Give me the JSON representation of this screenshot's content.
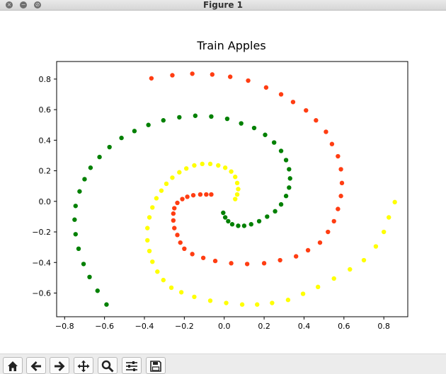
{
  "window": {
    "title": "Figure 1",
    "buttons": [
      {
        "name": "close",
        "glyph": "×"
      },
      {
        "name": "minimize",
        "glyph": "−"
      },
      {
        "name": "zoom",
        "glyph": "⊘"
      }
    ]
  },
  "chart_data": {
    "type": "scatter",
    "title": "Train Apples",
    "xlabel": "",
    "ylabel": "",
    "xlim": [
      -0.84,
      0.92
    ],
    "ylim": [
      -0.755,
      0.915
    ],
    "xticks": [
      -0.8,
      -0.6,
      -0.4,
      -0.2,
      0.0,
      0.2,
      0.4,
      0.6,
      0.8
    ],
    "xtick_labels": [
      "−0.8",
      "−0.6",
      "−0.4",
      "−0.2",
      "0.0",
      "0.2",
      "0.4",
      "0.6",
      "0.8"
    ],
    "yticks": [
      -0.6,
      -0.4,
      -0.2,
      0.0,
      0.2,
      0.4,
      0.6,
      0.8
    ],
    "ytick_labels": [
      "−0.6",
      "−0.4",
      "−0.2",
      "0.0",
      "0.2",
      "0.4",
      "0.6",
      "0.8"
    ],
    "grid": false,
    "legend": "none",
    "series": [
      {
        "color": "#ff3d12",
        "x": [
          -0.365,
          -0.26,
          -0.16,
          -0.06,
          0.03,
          0.12,
          0.21,
          0.285,
          0.345,
          0.41,
          0.46,
          0.51,
          0.54,
          0.57,
          0.585,
          0.59,
          0.585,
          0.57,
          0.55,
          0.52,
          0.48,
          0.42,
          0.36,
          0.28,
          0.2,
          0.115,
          0.035,
          -0.045,
          -0.105,
          -0.16,
          -0.2,
          -0.22,
          -0.235,
          -0.25,
          -0.255,
          -0.255,
          -0.25,
          -0.235,
          -0.21,
          -0.185,
          -0.155,
          -0.12,
          -0.09,
          -0.065
        ],
        "y": [
          0.805,
          0.825,
          0.835,
          0.83,
          0.815,
          0.79,
          0.745,
          0.7,
          0.65,
          0.595,
          0.53,
          0.455,
          0.375,
          0.295,
          0.21,
          0.12,
          0.035,
          -0.05,
          -0.13,
          -0.2,
          -0.27,
          -0.32,
          -0.36,
          -0.385,
          -0.405,
          -0.41,
          -0.405,
          -0.39,
          -0.37,
          -0.345,
          -0.31,
          -0.27,
          -0.22,
          -0.175,
          -0.125,
          -0.08,
          -0.045,
          -0.01,
          0.015,
          0.03,
          0.04,
          0.045,
          0.045,
          0.045
        ]
      },
      {
        "color": "#008000",
        "x": [
          -0.59,
          -0.635,
          -0.675,
          -0.705,
          -0.73,
          -0.745,
          -0.75,
          -0.745,
          -0.725,
          -0.7,
          -0.67,
          -0.625,
          -0.575,
          -0.515,
          -0.45,
          -0.38,
          -0.305,
          -0.225,
          -0.145,
          -0.065,
          0.015,
          0.085,
          0.15,
          0.205,
          0.25,
          0.285,
          0.31,
          0.325,
          0.33,
          0.325,
          0.31,
          0.285,
          0.255,
          0.215,
          0.175,
          0.135,
          0.1,
          0.07,
          0.04,
          0.02,
          0.005,
          -0.005
        ],
        "y": [
          -0.675,
          -0.585,
          -0.495,
          -0.41,
          -0.31,
          -0.215,
          -0.12,
          -0.03,
          0.065,
          0.145,
          0.22,
          0.29,
          0.355,
          0.415,
          0.46,
          0.5,
          0.53,
          0.55,
          0.56,
          0.555,
          0.54,
          0.51,
          0.48,
          0.435,
          0.385,
          0.33,
          0.27,
          0.21,
          0.15,
          0.09,
          0.035,
          -0.02,
          -0.065,
          -0.1,
          -0.13,
          -0.15,
          -0.16,
          -0.16,
          -0.15,
          -0.13,
          -0.105,
          -0.075
        ]
      },
      {
        "color": "#ffff00",
        "x": [
          0.855,
          0.825,
          0.8,
          0.76,
          0.7,
          0.63,
          0.55,
          0.47,
          0.395,
          0.32,
          0.24,
          0.165,
          0.09,
          0.01,
          -0.07,
          -0.15,
          -0.215,
          -0.265,
          -0.305,
          -0.335,
          -0.36,
          -0.375,
          -0.385,
          -0.385,
          -0.375,
          -0.36,
          -0.34,
          -0.315,
          -0.29,
          -0.26,
          -0.225,
          -0.19,
          -0.15,
          -0.11,
          -0.07,
          -0.03,
          0.005,
          0.035,
          0.055,
          0.065,
          0.07,
          0.065,
          0.055
        ],
        "y": [
          -0.005,
          -0.105,
          -0.2,
          -0.295,
          -0.385,
          -0.445,
          -0.505,
          -0.56,
          -0.605,
          -0.645,
          -0.665,
          -0.675,
          -0.675,
          -0.665,
          -0.65,
          -0.625,
          -0.595,
          -0.565,
          -0.515,
          -0.46,
          -0.395,
          -0.325,
          -0.255,
          -0.175,
          -0.105,
          -0.04,
          0.02,
          0.07,
          0.115,
          0.155,
          0.19,
          0.215,
          0.235,
          0.245,
          0.245,
          0.235,
          0.22,
          0.195,
          0.16,
          0.12,
          0.08,
          0.045,
          0.015
        ]
      }
    ]
  },
  "toolbar": {
    "items": [
      "home-icon",
      "back-icon",
      "forward-icon",
      "pan-icon",
      "zoom-icon",
      "configure-icon",
      "save-icon"
    ]
  }
}
